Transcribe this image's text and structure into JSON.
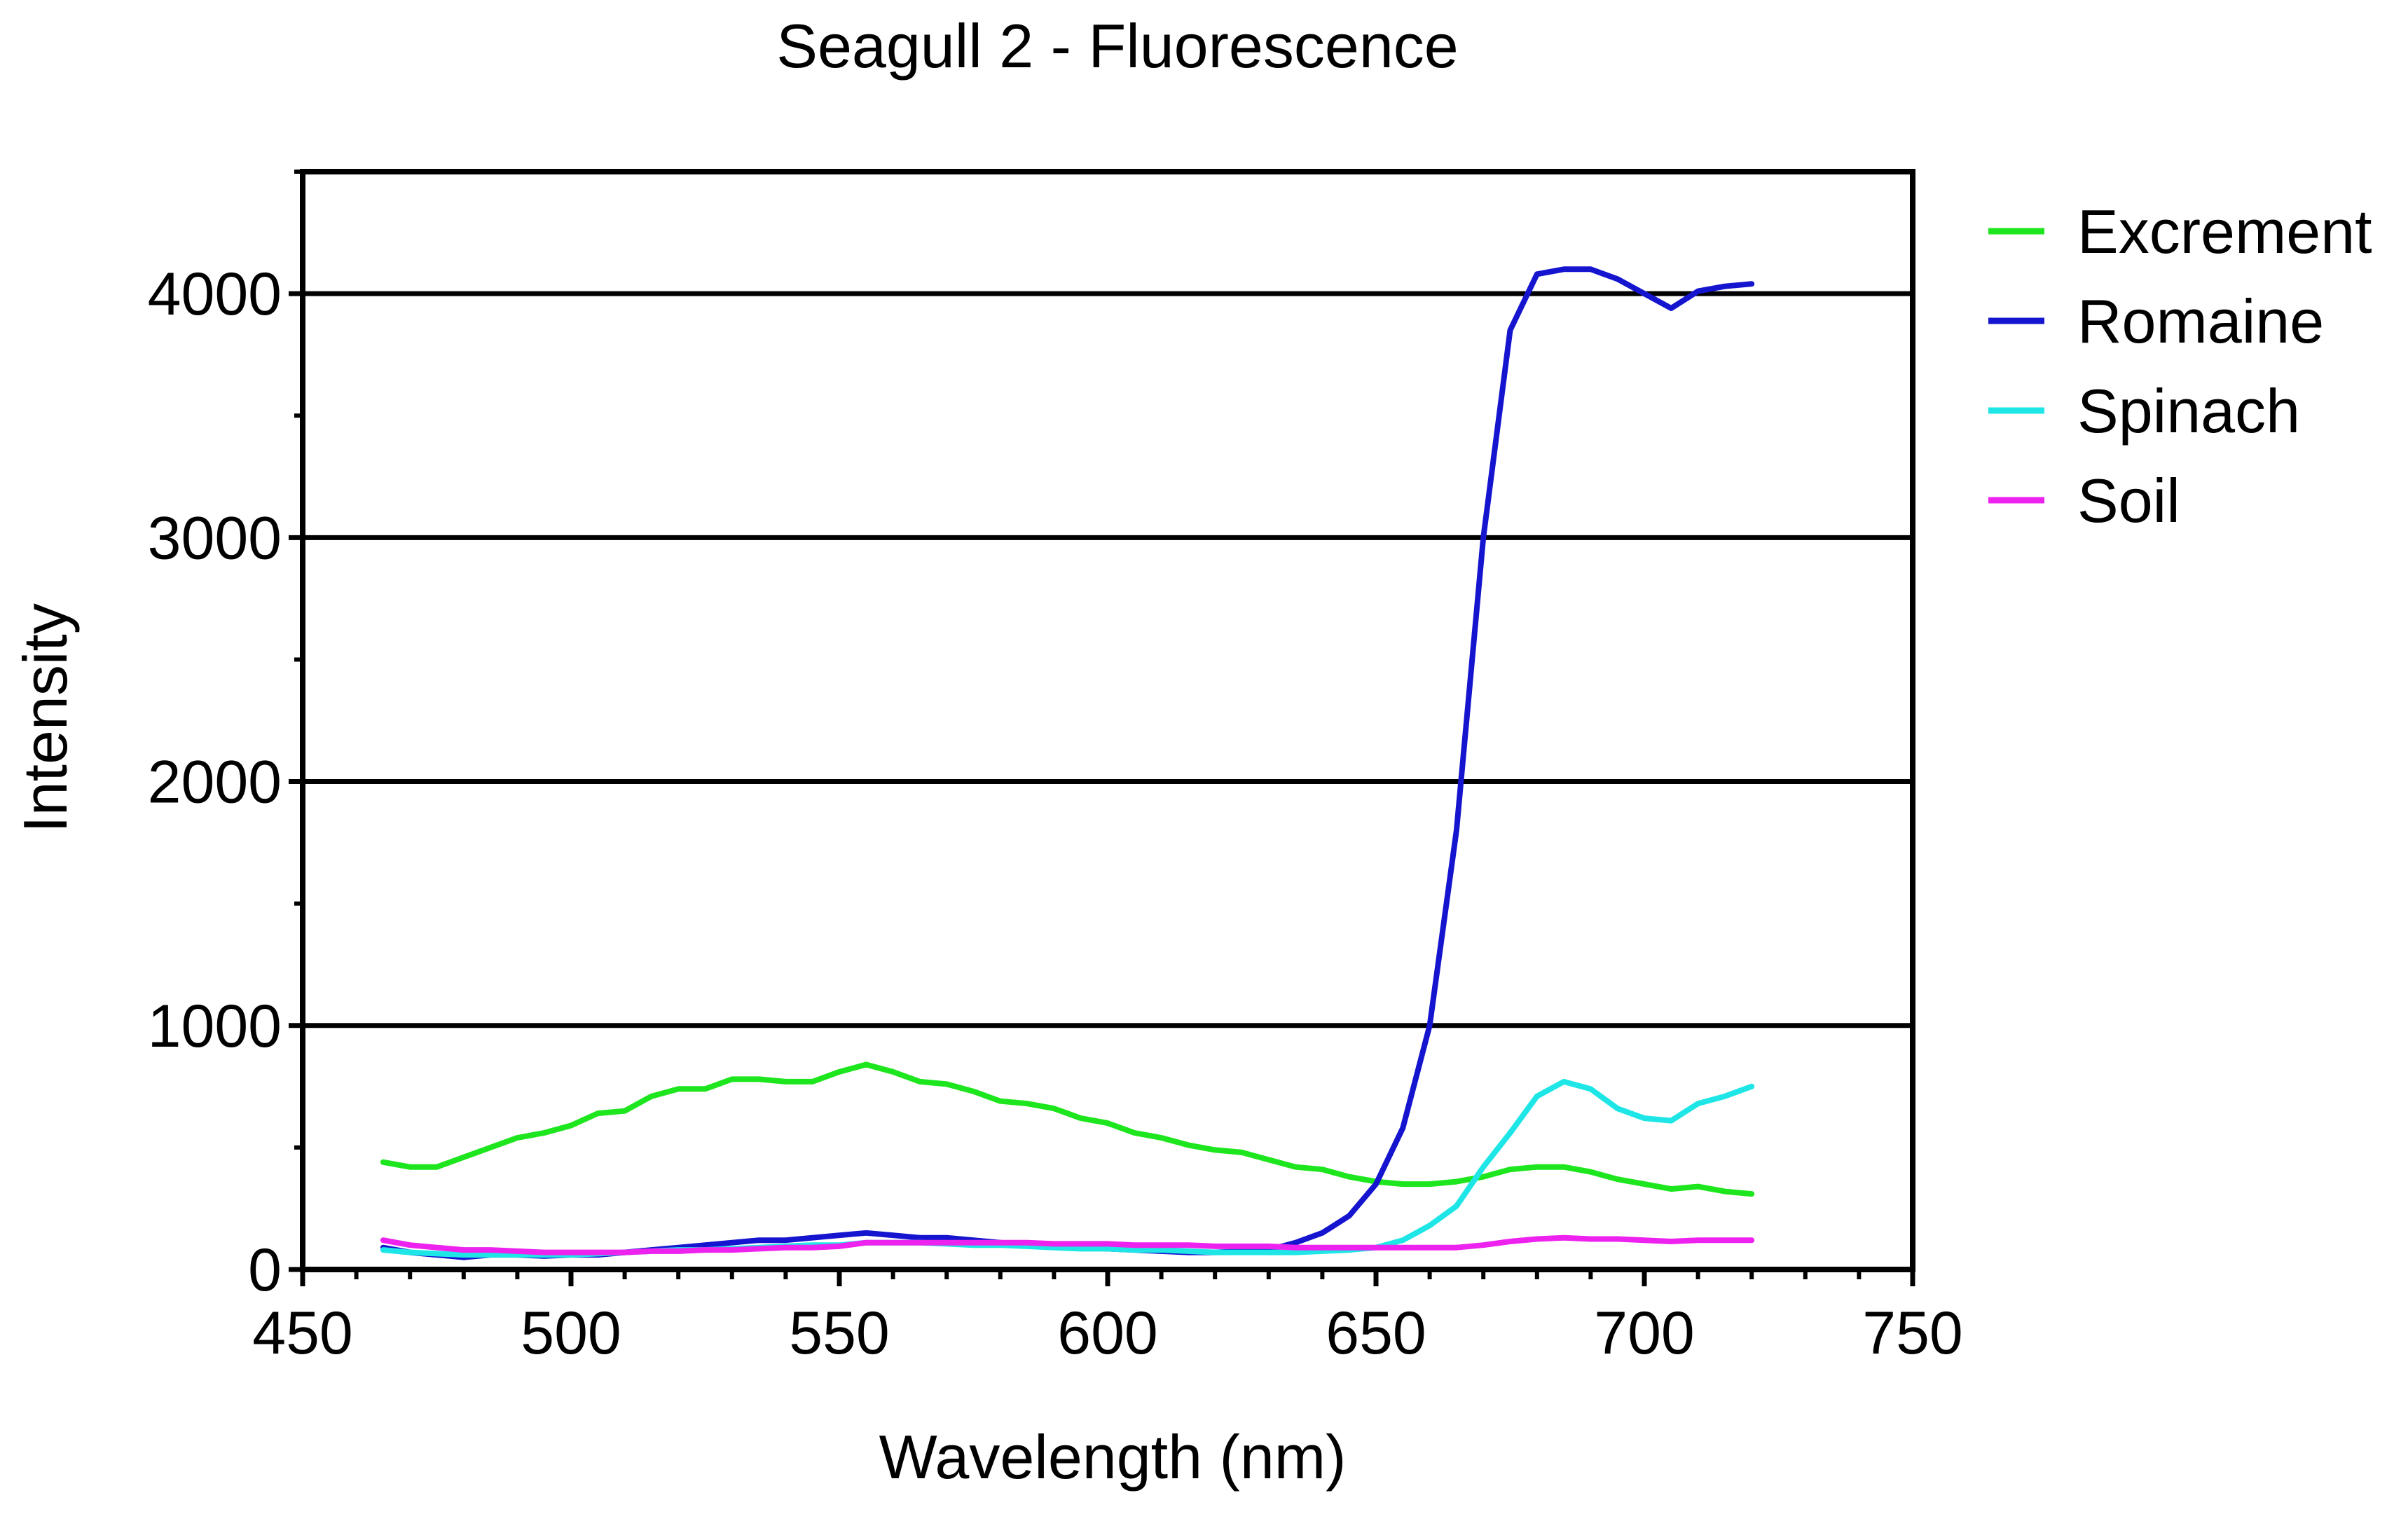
{
  "chart_data": {
    "type": "line",
    "title": "Seagull 2 - Fluorescence",
    "xlabel": "Wavelength (nm)",
    "ylabel": "Intensity",
    "xlim": [
      450,
      750
    ],
    "ylim": [
      0,
      4500
    ],
    "xticks": [
      450,
      500,
      550,
      600,
      650,
      700,
      750
    ],
    "xtick_labels": [
      "450",
      "500",
      "550",
      "600",
      "650",
      "700",
      "750"
    ],
    "yticks": [
      0,
      1000,
      2000,
      3000,
      4000
    ],
    "ytick_labels": [
      "0",
      "1000",
      "2000",
      "3000",
      "4000"
    ],
    "grid": "horizontal at major y ticks",
    "legend_position": "right, outside plot",
    "x": [
      465,
      470,
      475,
      480,
      485,
      490,
      495,
      500,
      505,
      510,
      515,
      520,
      525,
      530,
      535,
      540,
      545,
      550,
      555,
      560,
      565,
      570,
      575,
      580,
      585,
      590,
      595,
      600,
      605,
      610,
      615,
      620,
      625,
      630,
      635,
      640,
      645,
      650,
      655,
      660,
      665,
      670,
      675,
      680,
      685,
      690,
      695,
      700,
      705,
      710,
      715,
      720
    ],
    "series": [
      {
        "name": "Excrement",
        "color": "#1ee61e",
        "values": [
          440,
          420,
          420,
          460,
          500,
          540,
          560,
          590,
          640,
          650,
          710,
          740,
          740,
          780,
          780,
          770,
          770,
          810,
          840,
          810,
          770,
          760,
          730,
          690,
          680,
          660,
          620,
          600,
          560,
          540,
          510,
          490,
          480,
          450,
          420,
          410,
          380,
          360,
          350,
          350,
          360,
          380,
          410,
          420,
          420,
          400,
          370,
          350,
          330,
          340,
          320,
          310
        ]
      },
      {
        "name": "Romaine",
        "color": "#1515d0",
        "values": [
          90,
          70,
          60,
          50,
          60,
          60,
          55,
          60,
          60,
          70,
          80,
          90,
          100,
          110,
          120,
          120,
          130,
          140,
          150,
          140,
          130,
          130,
          120,
          110,
          100,
          100,
          90,
          85,
          80,
          75,
          70,
          70,
          75,
          80,
          110,
          150,
          220,
          350,
          580,
          1000,
          1800,
          3000,
          3850,
          4080,
          4100,
          4100,
          4060,
          4000,
          3940,
          4010,
          4030,
          4040
        ]
      },
      {
        "name": "Spinach",
        "color": "#1ee6e6",
        "values": [
          80,
          70,
          65,
          60,
          60,
          60,
          60,
          60,
          65,
          70,
          75,
          80,
          80,
          85,
          90,
          95,
          100,
          100,
          110,
          110,
          110,
          105,
          100,
          100,
          95,
          90,
          85,
          85,
          80,
          80,
          75,
          70,
          70,
          70,
          70,
          75,
          80,
          90,
          120,
          180,
          260,
          420,
          560,
          710,
          770,
          740,
          660,
          620,
          610,
          680,
          710,
          750
        ]
      },
      {
        "name": "Soil",
        "color": "#ee22ee",
        "values": [
          120,
          100,
          90,
          80,
          80,
          75,
          70,
          70,
          70,
          70,
          75,
          75,
          80,
          80,
          85,
          90,
          90,
          95,
          110,
          110,
          110,
          110,
          110,
          110,
          110,
          105,
          105,
          105,
          100,
          100,
          100,
          95,
          95,
          95,
          90,
          90,
          90,
          90,
          90,
          90,
          90,
          100,
          115,
          125,
          130,
          125,
          125,
          120,
          115,
          120,
          120,
          120
        ]
      }
    ]
  }
}
